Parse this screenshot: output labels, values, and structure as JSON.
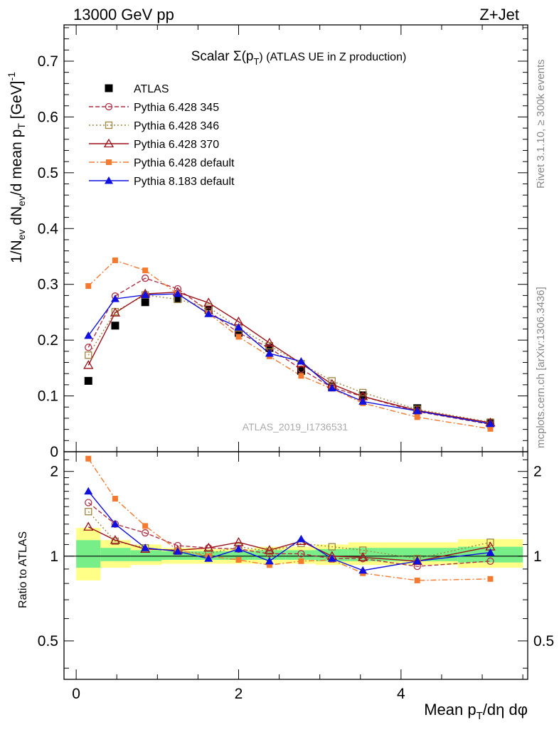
{
  "header": {
    "left": "13000 GeV pp",
    "right": "Z+Jet"
  },
  "side_labels": {
    "rivet": "Rivet 3.1.10, ≥ 300k events",
    "mcplots": "mcplots.cern.ch [arXiv:1306.3436]"
  },
  "colors": {
    "atlas": "#000000",
    "p345": "#b03045",
    "p346": "#a08540",
    "p370": "#9b1018",
    "p6def": "#f47a30",
    "p8def": "#1010e0",
    "band_yellow": "#ffff88",
    "band_green": "#77ee88"
  },
  "chart_data": [
    {
      "type": "line",
      "title_prefix": "Scalar Σ(p",
      "title_sub": "T",
      "title_suffix": ") (ATLAS UE in Z production)",
      "ylabel": "1/N_ev dN_ev/d mean p_T [GeV]^-1",
      "watermark": "ATLAS_2019_I1736531",
      "xlim": [
        -0.15,
        5.56
      ],
      "ylim": [
        0,
        0.765
      ],
      "ytick_labels": [
        "0",
        "0.1",
        "0.2",
        "0.3",
        "0.4",
        "0.5",
        "0.6",
        "0.7"
      ],
      "x": [
        0.15,
        0.48,
        0.85,
        1.25,
        1.63,
        2.0,
        2.38,
        2.77,
        3.15,
        3.53,
        4.2,
        5.1
      ],
      "series": [
        {
          "name": "ATLAS",
          "key": "atlas",
          "values": [
            0.127,
            0.226,
            0.268,
            0.274,
            0.254,
            0.213,
            0.186,
            0.145,
            0.117,
            0.101,
            0.078,
            0.051
          ]
        },
        {
          "name": "Pythia 6.428 345",
          "key": "p345",
          "values": [
            0.187,
            0.279,
            0.311,
            0.292,
            0.252,
            0.213,
            0.186,
            0.148,
            0.115,
            0.099,
            0.072,
            0.049
          ]
        },
        {
          "name": "Pythia 6.428 346",
          "key": "p346",
          "values": [
            0.173,
            0.251,
            0.281,
            0.273,
            0.259,
            0.222,
            0.19,
            0.158,
            0.127,
            0.106,
            0.076,
            0.053
          ]
        },
        {
          "name": "Pythia 6.428 370",
          "key": "p370",
          "values": [
            0.155,
            0.249,
            0.283,
            0.286,
            0.267,
            0.233,
            0.195,
            0.158,
            0.121,
            0.099,
            0.074,
            0.052
          ]
        },
        {
          "name": "Pythia 6.428 default",
          "key": "p6def",
          "values": [
            0.297,
            0.343,
            0.325,
            0.283,
            0.248,
            0.206,
            0.171,
            0.136,
            0.113,
            0.087,
            0.062,
            0.041
          ]
        },
        {
          "name": "Pythia 8.183 default",
          "key": "p8def",
          "values": [
            0.208,
            0.274,
            0.281,
            0.283,
            0.247,
            0.223,
            0.176,
            0.162,
            0.114,
            0.09,
            0.073,
            0.05
          ]
        }
      ]
    },
    {
      "type": "line",
      "ylabel": "Ratio to ATLAS",
      "xlabel": "Mean p_T/dη dφ",
      "xlim": [
        -0.15,
        5.56
      ],
      "ylim": [
        0.365,
        2.35
      ],
      "xtick_labels": [
        "0",
        "2",
        "4"
      ],
      "ytick_labels": [
        "0.5",
        "1",
        "2"
      ],
      "ratio_bands": {
        "x_edges": [
          0.0,
          0.3,
          0.67,
          1.05,
          1.45,
          1.82,
          2.2,
          2.58,
          2.95,
          3.35,
          3.72,
          4.7,
          5.5
        ],
        "yellow_lo": [
          0.82,
          0.91,
          0.93,
          0.94,
          0.94,
          0.94,
          0.94,
          0.94,
          0.93,
          0.93,
          0.93,
          0.91
        ],
        "yellow_hi": [
          1.26,
          1.14,
          1.1,
          1.07,
          1.06,
          1.06,
          1.08,
          1.08,
          1.1,
          1.12,
          1.12,
          1.15
        ],
        "green_lo": [
          0.91,
          0.96,
          0.96,
          0.97,
          0.97,
          0.97,
          0.97,
          0.97,
          0.96,
          0.96,
          0.96,
          0.95
        ],
        "green_hi": [
          1.14,
          1.07,
          1.05,
          1.04,
          1.04,
          1.04,
          1.05,
          1.05,
          1.06,
          1.07,
          1.07,
          1.08
        ]
      },
      "series": [
        {
          "name": "Pythia 6.428 345",
          "key": "p345",
          "values": [
            1.55,
            1.3,
            1.21,
            1.09,
            1.07,
            1.06,
            1.02,
            1.02,
            0.98,
            0.98,
            0.92,
            0.96
          ]
        },
        {
          "name": "Pythia 6.428 346",
          "key": "p346",
          "values": [
            1.44,
            1.13,
            1.07,
            1.04,
            1.02,
            1.08,
            1.04,
            1.11,
            1.08,
            1.05,
            0.98,
            1.12
          ]
        },
        {
          "name": "Pythia 6.428 370",
          "key": "p370",
          "values": [
            1.27,
            1.14,
            1.06,
            1.05,
            1.07,
            1.12,
            1.05,
            1.13,
            1.0,
            0.99,
            0.96,
            1.08
          ]
        },
        {
          "name": "Pythia 6.428 default",
          "key": "p6def",
          "values": [
            2.22,
            1.6,
            1.28,
            1.05,
            1.0,
            0.97,
            0.93,
            0.96,
            0.97,
            0.87,
            0.82,
            0.83
          ]
        },
        {
          "name": "Pythia 8.183 default",
          "key": "p8def",
          "values": [
            1.7,
            1.3,
            1.07,
            1.04,
            0.98,
            1.06,
            0.96,
            1.15,
            0.98,
            0.89,
            0.96,
            1.03
          ]
        }
      ]
    }
  ]
}
